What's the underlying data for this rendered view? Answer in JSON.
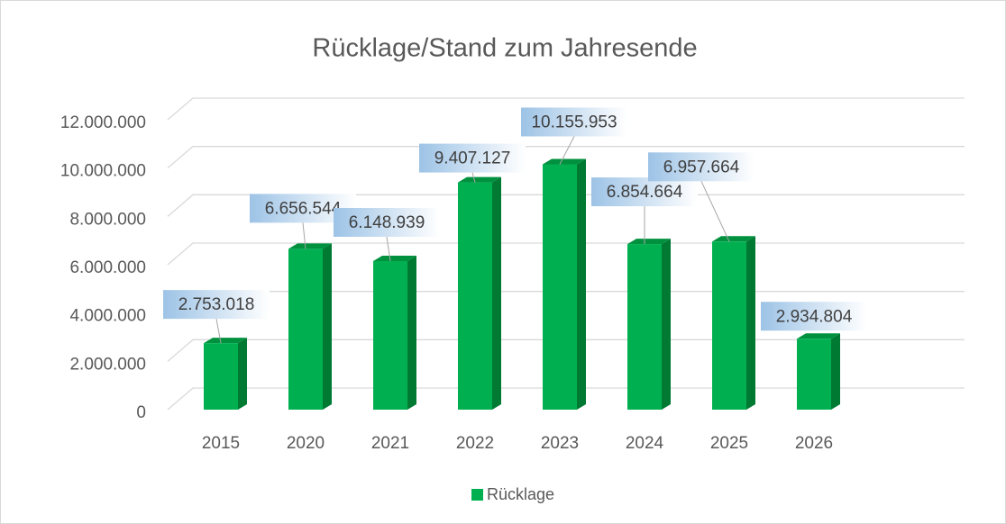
{
  "chart_data": {
    "type": "bar3d",
    "title": "Rücklage/Stand zum Jahresende",
    "categories": [
      "2015",
      "2020",
      "2021",
      "2022",
      "2023",
      "2024",
      "2025",
      "2026"
    ],
    "series": [
      {
        "name": "Rücklage",
        "color": "#00b050",
        "values": [
          2753018,
          6656544,
          6148939,
          9407127,
          10155953,
          6854664,
          6957664,
          2934804
        ],
        "value_labels": [
          "2.753.018",
          "6.656.544",
          "6.148.939",
          "9.407.127",
          "10.155.953",
          "6.854.664",
          "6.957.664",
          "2.934.804"
        ]
      }
    ],
    "ylim": [
      0,
      12000000
    ],
    "yticks": [
      0,
      {
        "value": 2000000,
        "label": "2.000.000"
      },
      {
        "value": 4000000,
        "label": "4.000.000"
      },
      {
        "value": 6000000,
        "label": "6.000.000"
      },
      {
        "value": 8000000,
        "label": "8.000.000"
      },
      {
        "value": 10000000,
        "label": "10.000.000"
      },
      {
        "value": 12000000,
        "label": "12.000.000"
      }
    ],
    "grid": true,
    "legend": "bottom"
  }
}
